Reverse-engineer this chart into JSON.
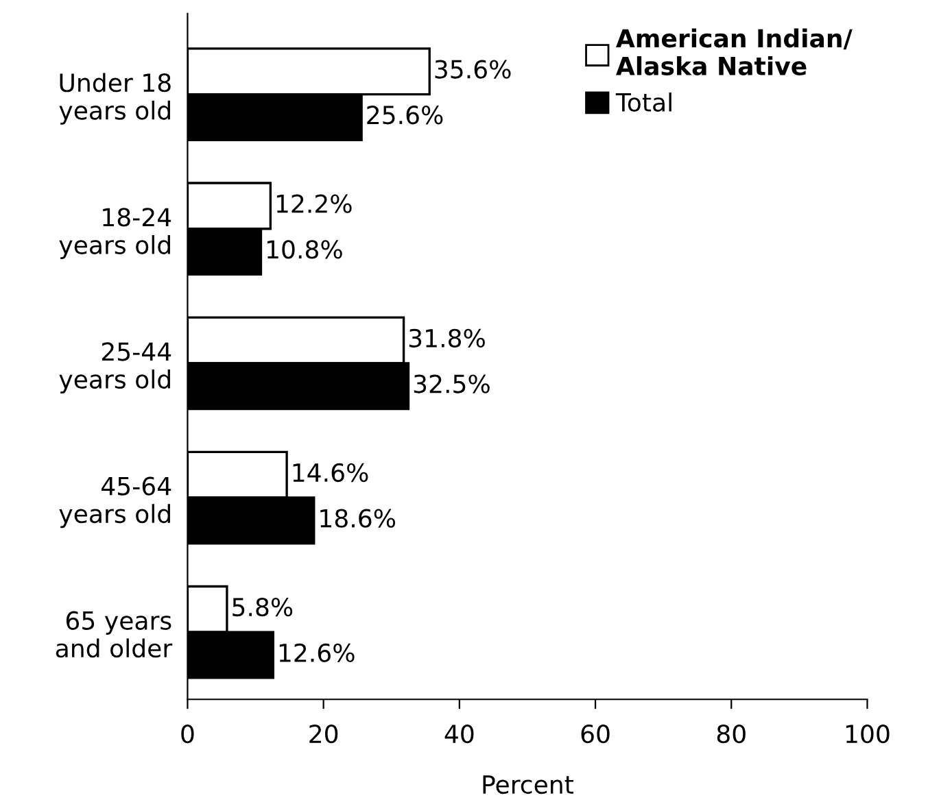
{
  "chart_data": {
    "type": "bar",
    "orientation": "horizontal",
    "xlabel": "Percent",
    "categories": [
      "Under 18\nyears old",
      "18-24\nyears old",
      "25-44\nyears old",
      "45-64\nyears old",
      "65 years\nand older"
    ],
    "series": [
      {
        "name": "American Indian/\nAlaska Native",
        "color": "#ffffff",
        "values": [
          35.6,
          12.2,
          31.8,
          14.6,
          5.8
        ],
        "value_labels": [
          "35.6%",
          "12.2%",
          "31.8%",
          "14.6%",
          "5.8%"
        ]
      },
      {
        "name": "Total",
        "color": "#000000",
        "values": [
          25.6,
          10.8,
          32.5,
          18.6,
          12.6
        ],
        "value_labels": [
          "25.6%",
          "10.8%",
          "32.5%",
          "18.6%",
          "12.6%"
        ]
      }
    ],
    "xlim": [
      0,
      100
    ],
    "xticks": [
      0,
      20,
      40,
      60,
      80,
      100
    ],
    "grid": false,
    "legend": "top right"
  }
}
